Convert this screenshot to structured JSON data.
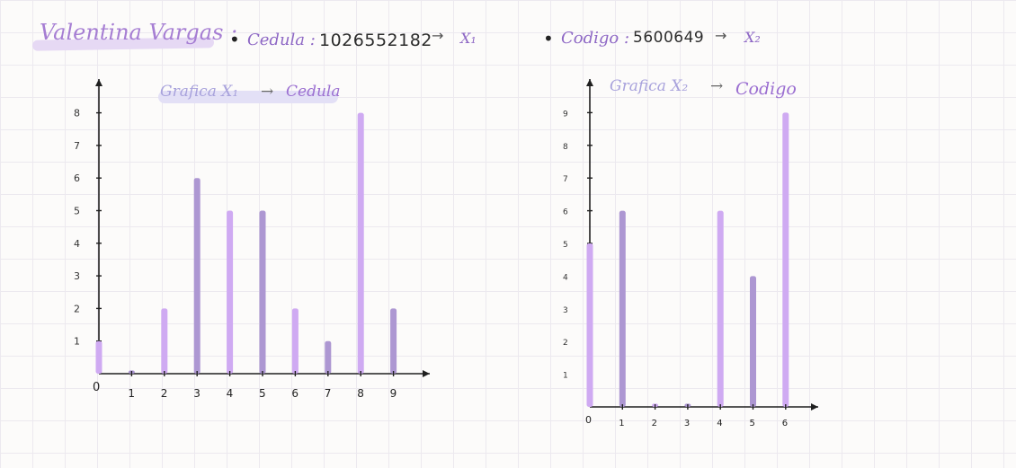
{
  "header": {
    "name": "Valentina Vargas :",
    "cedula_label": "Cedula :",
    "cedula_value": "1026552182",
    "cedula_arrow": "→",
    "cedula_var": "X₁",
    "codigo_label": "Codigo :",
    "codigo_value": "5600649",
    "codigo_arrow": "→",
    "codigo_var": "X₂",
    "bullet": "•"
  },
  "colors": {
    "bar_light": "#cfaaf2",
    "bar_dark": "#ad97d2",
    "axis": "#1f1f1f"
  },
  "chart_data": [
    {
      "type": "bar",
      "title_part1": "Grafica X₁",
      "title_arrow": "→",
      "title_part2": "Cedula",
      "categories": [
        "0",
        "1",
        "2",
        "3",
        "4",
        "5",
        "6",
        "7",
        "8",
        "9"
      ],
      "values": [
        1,
        0.1,
        2,
        6,
        5,
        5,
        2,
        1,
        8,
        2
      ],
      "y_ticks": [
        "1",
        "2",
        "3",
        "4",
        "5",
        "6",
        "7",
        "8"
      ],
      "ylim": [
        0,
        8.6
      ]
    },
    {
      "type": "bar",
      "title_part1": "Grafica X₂",
      "title_arrow": "→",
      "title_part2": "Codigo",
      "categories": [
        "0",
        "1",
        "2",
        "3",
        "4",
        "5",
        "6"
      ],
      "values": [
        5,
        6,
        0.1,
        0.1,
        6,
        4,
        9
      ],
      "y_ticks": [
        "1",
        "2",
        "3",
        "4",
        "5",
        "6",
        "7",
        "8",
        "9"
      ],
      "ylim": [
        0,
        9.7
      ]
    }
  ]
}
